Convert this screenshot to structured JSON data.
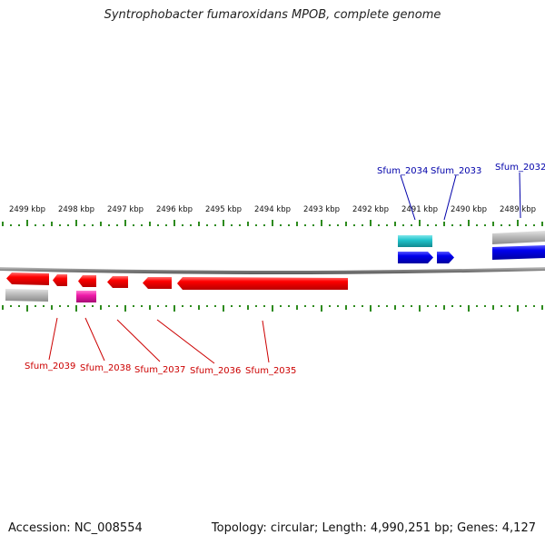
{
  "title": "Syntrophobacter fumaroxidans MPOB, complete genome",
  "footer": {
    "accession": "Accession: NC_008554",
    "topology": "Topology: circular; Length: 4,990,251 bp; Genes: 4,127"
  },
  "scale": {
    "unit_label_suffix": " kbp",
    "major_ticks_kbp": [
      2499,
      2498,
      2497,
      2496,
      2495,
      2494,
      2493,
      2492,
      2491,
      2490,
      2489
    ],
    "tick_color": "#2e8b1e"
  },
  "colors": {
    "backbone": "#8a8a8a",
    "gene_red": "#ff0000",
    "gene_blue": "#0000ee",
    "gene_cyan": "#22c4cc",
    "gene_magenta": "#ee1aa8",
    "gene_gray": "#b8b8b8",
    "label_red": "#cc0000",
    "label_blue": "#0000aa"
  },
  "genes": [
    {
      "name": "Sfum_2039",
      "strand": "-",
      "color": "red"
    },
    {
      "name": "Sfum_2038",
      "strand": "-",
      "color": "red"
    },
    {
      "name": "Sfum_2037",
      "strand": "-",
      "color": "red"
    },
    {
      "name": "Sfum_2036",
      "strand": "-",
      "color": "red"
    },
    {
      "name": "Sfum_2035",
      "strand": "-",
      "color": "red"
    },
    {
      "name": "Sfum_2034",
      "strand": "+",
      "color": "cyan"
    },
    {
      "name": "Sfum_2033",
      "strand": "+",
      "color": "blue"
    },
    {
      "name": "Sfum_2032",
      "strand": "+",
      "color": "blue"
    }
  ]
}
